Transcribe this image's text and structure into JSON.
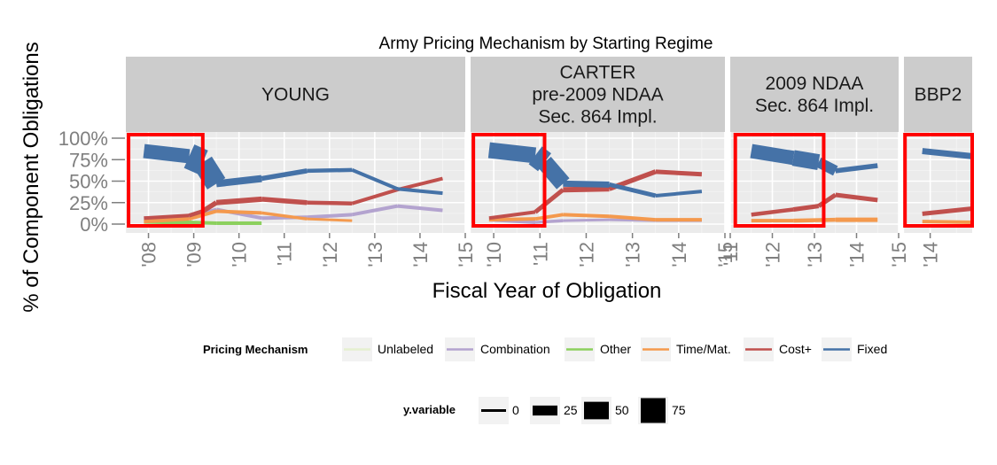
{
  "chart_data": {
    "type": "line",
    "title": "Army Pricing Mechanism by Starting Regime",
    "xlabel": "Fiscal Year of Obligation",
    "ylabel": "% of Component Obligations",
    "ylim": [
      0,
      1
    ],
    "y_ticks": [
      "0%",
      "25%",
      "50%",
      "75%",
      "100%"
    ],
    "panels": [
      {
        "strip": [
          "YOUNG"
        ],
        "xlim": [
          2007.5,
          2015
        ],
        "x_ticks": [
          {
            "x": 2008,
            "label": "'08"
          },
          {
            "x": 2009,
            "label": "'09"
          },
          {
            "x": 2010,
            "label": "'10"
          },
          {
            "x": 2011,
            "label": "'11"
          },
          {
            "x": 2012,
            "label": "'12"
          },
          {
            "x": 2013,
            "label": "'13"
          },
          {
            "x": 2014,
            "label": "'14"
          },
          {
            "x": 2015,
            "label": "'15"
          }
        ],
        "highlight": [
          2007.56,
          2009.2
        ],
        "series": [
          {
            "name": "Fixed",
            "points": [
              [
                2007.9,
                0.85,
                12
              ],
              [
                2008.9,
                0.79,
                20
              ],
              [
                2009.2,
                0.72,
                38
              ],
              [
                2009.5,
                0.47,
                10
              ],
              [
                2010.5,
                0.53,
                6
              ],
              [
                2011.5,
                0.62,
                5
              ],
              [
                2012.5,
                0.63,
                4
              ],
              [
                2013.5,
                0.41,
                4
              ],
              [
                2014.5,
                0.36,
                4
              ]
            ]
          },
          {
            "name": "Cost+",
            "points": [
              [
                2007.9,
                0.07,
                4
              ],
              [
                2008.9,
                0.1,
                4
              ],
              [
                2009.2,
                0.15,
                5
              ],
              [
                2009.5,
                0.25,
                6
              ],
              [
                2010.5,
                0.29,
                6
              ],
              [
                2011.5,
                0.25,
                5
              ],
              [
                2012.5,
                0.24,
                4
              ],
              [
                2013.5,
                0.4,
                4
              ],
              [
                2014.5,
                0.53,
                4
              ]
            ]
          },
          {
            "name": "Time/Mat.",
            "points": [
              [
                2007.9,
                0.03,
                4
              ],
              [
                2008.9,
                0.06,
                4
              ],
              [
                2009.5,
                0.15,
                4
              ],
              [
                2010.5,
                0.13,
                4
              ],
              [
                2011.5,
                0.06,
                3
              ],
              [
                2012.5,
                0.04,
                3
              ]
            ]
          },
          {
            "name": "Combination",
            "points": [
              [
                2007.9,
                0.07,
                4
              ],
              [
                2008.9,
                0.08,
                4
              ],
              [
                2009.5,
                0.17,
                4
              ],
              [
                2010.5,
                0.07,
                4
              ],
              [
                2011.5,
                0.08,
                4
              ],
              [
                2012.5,
                0.11,
                4
              ],
              [
                2013.5,
                0.21,
                4
              ],
              [
                2014.5,
                0.16,
                4
              ]
            ]
          },
          {
            "name": "Other",
            "points": [
              [
                2007.9,
                0.03,
                6
              ],
              [
                2008.9,
                0.02,
                4
              ],
              [
                2009.5,
                0.01,
                4
              ],
              [
                2010.5,
                0.01,
                4
              ]
            ]
          }
        ]
      },
      {
        "strip": [
          "CARTER",
          "pre-2009 NDAA",
          "Sec. 864 Impl."
        ],
        "xlim": [
          2009.5,
          2015
        ],
        "x_ticks": [
          {
            "x": 2010,
            "label": "'10"
          },
          {
            "x": 2011,
            "label": "'11"
          },
          {
            "x": 2012,
            "label": "'12"
          },
          {
            "x": 2013,
            "label": "'13"
          },
          {
            "x": 2014,
            "label": "'14"
          },
          {
            "x": 2015,
            "label": "'15"
          }
        ],
        "highlight": [
          2009.56,
          2011.1
        ],
        "series": [
          {
            "name": "Fixed",
            "points": [
              [
                2009.9,
                0.86,
                16
              ],
              [
                2010.9,
                0.8,
                20
              ],
              [
                2011.1,
                0.72,
                30
              ],
              [
                2011.5,
                0.47,
                8
              ],
              [
                2012.5,
                0.46,
                6
              ],
              [
                2013.5,
                0.33,
                4
              ],
              [
                2014.5,
                0.38,
                4
              ]
            ]
          },
          {
            "name": "Cost+",
            "points": [
              [
                2009.9,
                0.07,
                4
              ],
              [
                2010.9,
                0.14,
                4
              ],
              [
                2011.5,
                0.4,
                6
              ],
              [
                2012.5,
                0.41,
                6
              ],
              [
                2013.5,
                0.61,
                5
              ],
              [
                2014.5,
                0.58,
                5
              ]
            ]
          },
          {
            "name": "Time/Mat.",
            "points": [
              [
                2009.9,
                0.05,
                4
              ],
              [
                2010.9,
                0.06,
                4
              ],
              [
                2011.5,
                0.11,
                4
              ],
              [
                2012.5,
                0.09,
                4
              ],
              [
                2013.5,
                0.05,
                4
              ],
              [
                2014.5,
                0.05,
                4
              ]
            ]
          },
          {
            "name": "Combination",
            "points": [
              [
                2009.9,
                0.05,
                4
              ],
              [
                2010.9,
                0.02,
                4
              ],
              [
                2011.5,
                0.04,
                3
              ],
              [
                2012.5,
                0.05,
                3
              ],
              [
                2013.5,
                0.04,
                3
              ],
              [
                2014.5,
                0.04,
                3
              ]
            ]
          }
        ]
      },
      {
        "strip": [
          "2009 NDAA",
          "Sec. 864 Impl."
        ],
        "xlim": [
          2011,
          2015
        ],
        "x_ticks": [
          {
            "x": 2011,
            "label": "'11"
          },
          {
            "x": 2012,
            "label": "'12"
          },
          {
            "x": 2013,
            "label": "'13"
          },
          {
            "x": 2014,
            "label": "'14"
          },
          {
            "x": 2015,
            "label": "'15"
          }
        ],
        "highlight": [
          2011.12,
          2013.22
        ],
        "series": [
          {
            "name": "Fixed",
            "points": [
              [
                2011.5,
                0.85,
                14
              ],
              [
                2012.5,
                0.77,
                18
              ],
              [
                2013.1,
                0.72,
                18
              ],
              [
                2013.5,
                0.62,
                6
              ],
              [
                2014.5,
                0.68,
                5
              ]
            ]
          },
          {
            "name": "Cost+",
            "points": [
              [
                2011.5,
                0.11,
                4
              ],
              [
                2012.5,
                0.17,
                5
              ],
              [
                2013.1,
                0.21,
                5
              ],
              [
                2013.5,
                0.34,
                5
              ],
              [
                2014.5,
                0.28,
                5
              ]
            ]
          },
          {
            "name": "Time/Mat.",
            "points": [
              [
                2011.5,
                0.04,
                4
              ],
              [
                2012.5,
                0.04,
                4
              ],
              [
                2013.5,
                0.05,
                5
              ],
              [
                2014.5,
                0.05,
                5
              ]
            ]
          }
        ]
      },
      {
        "strip": [
          "BBP2"
        ],
        "xlim": [
          2013.5,
          2014.8
        ],
        "x_ticks": [
          {
            "x": 2014,
            "label": "'14"
          }
        ],
        "highlight": [
          2013.52,
          2014.8
        ],
        "series": [
          {
            "name": "Fixed",
            "points": [
              [
                2013.85,
                0.85,
                7
              ],
              [
                2014.8,
                0.79,
                7
              ]
            ]
          },
          {
            "name": "Cost+",
            "points": [
              [
                2013.85,
                0.12,
                5
              ],
              [
                2014.8,
                0.18,
                5
              ]
            ]
          },
          {
            "name": "Time/Mat.",
            "points": [
              [
                2013.85,
                0.03,
                4
              ],
              [
                2014.8,
                0.02,
                4
              ]
            ]
          }
        ]
      }
    ],
    "legend": {
      "color_title": "Pricing Mechanism",
      "color_entries": [
        {
          "name": "Unlabeled",
          "color": "#e5f0d0"
        },
        {
          "name": "Combination",
          "color": "#b3a3cf"
        },
        {
          "name": "Other",
          "color": "#8cd05e"
        },
        {
          "name": "Time/Mat.",
          "color": "#f4994d"
        },
        {
          "name": "Cost+",
          "color": "#c0504d"
        },
        {
          "name": "Fixed",
          "color": "#4572a7"
        }
      ],
      "size_title": "y.variable",
      "size_entries": [
        {
          "label": "0",
          "value": 0
        },
        {
          "label": "25",
          "value": 25
        },
        {
          "label": "50",
          "value": 50
        },
        {
          "label": "75",
          "value": 75
        }
      ]
    }
  }
}
